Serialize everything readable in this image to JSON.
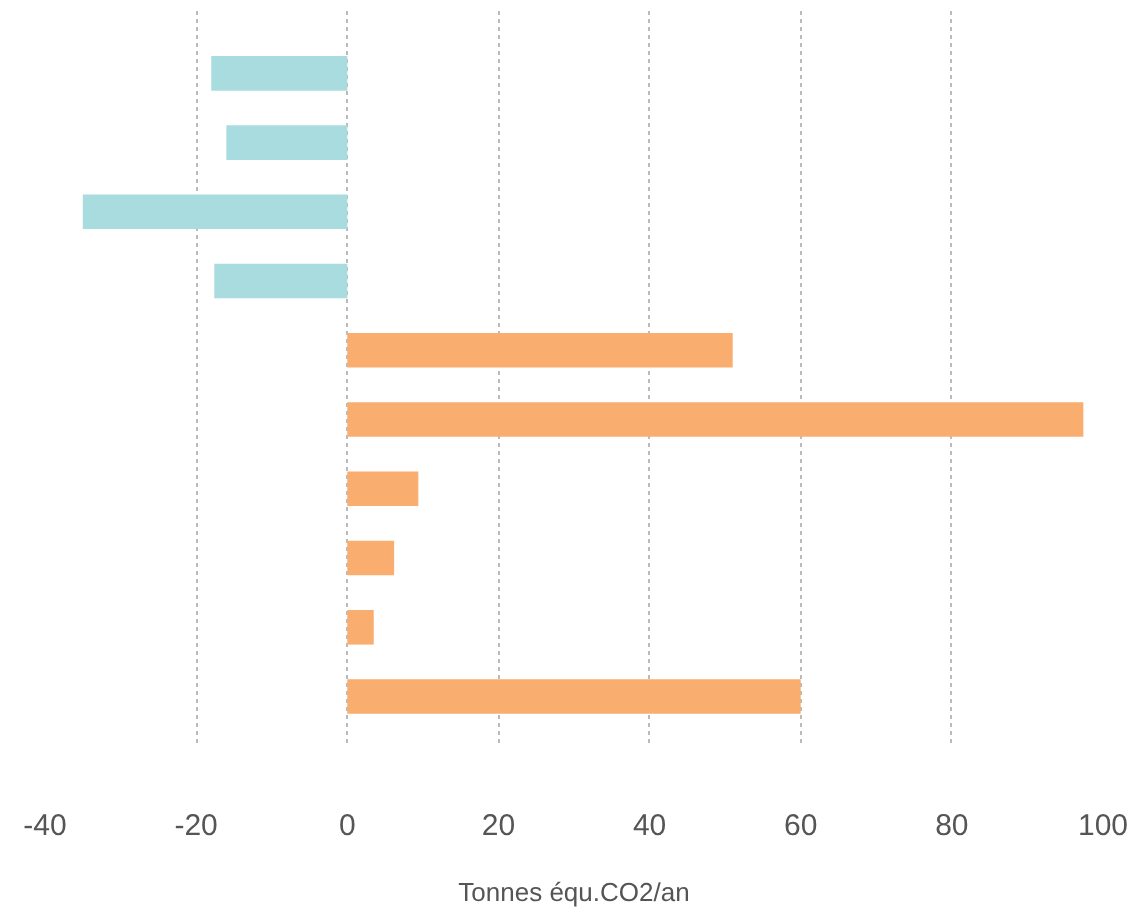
{
  "chart_data": {
    "type": "bar",
    "orientation": "horizontal",
    "xlabel": "Tonnes équ.CO2/an",
    "categories": [
      null,
      null,
      null,
      null,
      null,
      null,
      null,
      null,
      null,
      null
    ],
    "values": [
      -18,
      -16,
      -35,
      -17.6,
      51,
      97.4,
      9.4,
      6.2,
      3.5,
      60
    ],
    "colors": [
      "#a8dcdf",
      "#a8dcdf",
      "#a8dcdf",
      "#a8dcdf",
      "#f9ae70",
      "#f9ae70",
      "#f9ae70",
      "#f9ae70",
      "#f9ae70",
      "#f9ae70"
    ],
    "xlim": [
      -40,
      100
    ],
    "xticks": [
      -40,
      -20,
      0,
      20,
      40,
      60,
      80,
      100
    ],
    "grid": "x"
  }
}
